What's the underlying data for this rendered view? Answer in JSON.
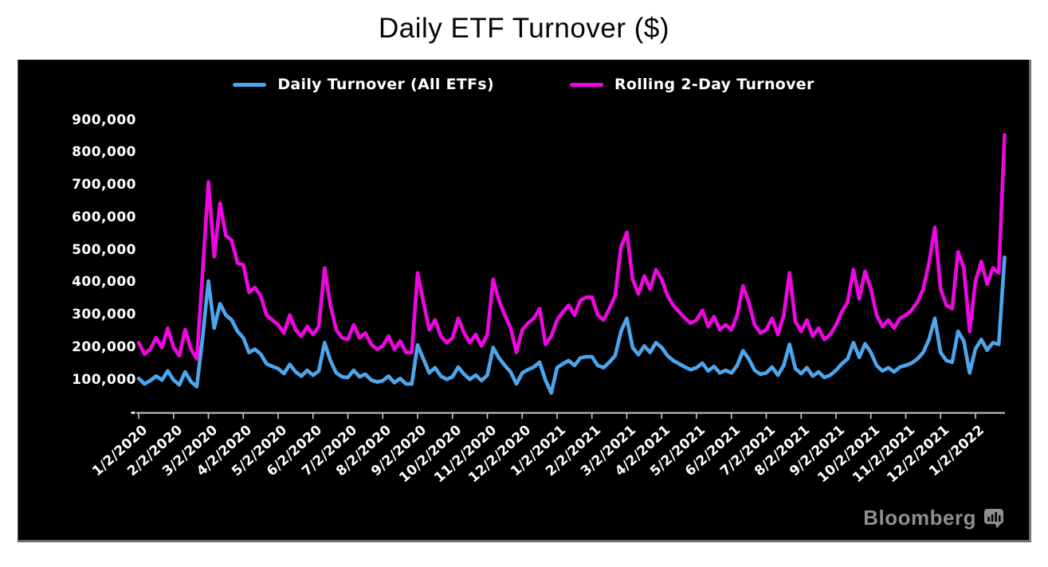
{
  "watermark": {
    "label": "Bloomberg",
    "color": "#8f8f8f",
    "logo_icon": "bloomberg-bars-icon"
  },
  "chart_data": {
    "type": "line",
    "title": "Daily ETF Turnover ($)",
    "background_color": "#000000",
    "axis_color": "#c9c9c9",
    "axis_text_color": "#ffffff",
    "grid": "off",
    "legend_position": "top-center",
    "x_axis": {
      "start_label": "1/2/2020",
      "points_per_month": 6,
      "label_rotation_deg": -42,
      "tick_labels": [
        "1/2/2020",
        "2/2/2020",
        "3/2/2020",
        "4/2/2020",
        "5/2/2020",
        "6/2/2020",
        "7/2/2020",
        "8/2/2020",
        "9/2/2020",
        "10/2/2020",
        "11/2/2020",
        "12/2/2020",
        "1/2/2021",
        "2/2/2021",
        "3/2/2021",
        "4/2/2021",
        "5/2/2021",
        "6/2/2021",
        "7/2/2021",
        "8/2/2021",
        "9/2/2021",
        "10/2/2021",
        "11/2/2021",
        "12/2/2021",
        "1/2/2022"
      ]
    },
    "y_axis": {
      "min": 0,
      "max": 900000,
      "tick_labels": [
        "900,000",
        "800,000",
        "700,000",
        "600,000",
        "500,000",
        "400,000",
        "300,000",
        "200,000",
        "100,000",
        "-"
      ]
    },
    "legend": {
      "items": [
        {
          "label": "Daily Turnover (All ETFs)",
          "color": "#4da6ec"
        },
        {
          "label": "Rolling 2-Day Turnover",
          "color": "#ef06e0"
        }
      ]
    },
    "series": [
      {
        "name": "Daily Turnover (All ETFs)",
        "color": "#4da6ec",
        "values": [
          105000,
          88000,
          98000,
          112000,
          100000,
          128000,
          100000,
          85000,
          125000,
          95000,
          80000,
          230000,
          405000,
          260000,
          335000,
          300000,
          285000,
          250000,
          230000,
          185000,
          195000,
          180000,
          150000,
          142000,
          135000,
          120000,
          148000,
          125000,
          112000,
          130000,
          115000,
          128000,
          215000,
          160000,
          122000,
          110000,
          108000,
          130000,
          110000,
          118000,
          100000,
          94000,
          98000,
          112000,
          92000,
          105000,
          88000,
          88000,
          208000,
          165000,
          122000,
          138000,
          112000,
          102000,
          110000,
          140000,
          118000,
          102000,
          115000,
          98000,
          115000,
          200000,
          168000,
          145000,
          125000,
          88000,
          122000,
          132000,
          140000,
          155000,
          100000,
          60000,
          138000,
          150000,
          160000,
          145000,
          168000,
          172000,
          172000,
          145000,
          138000,
          155000,
          175000,
          250000,
          290000,
          200000,
          178000,
          205000,
          185000,
          215000,
          200000,
          175000,
          160000,
          150000,
          140000,
          132000,
          138000,
          152000,
          128000,
          142000,
          122000,
          130000,
          122000,
          145000,
          190000,
          165000,
          130000,
          118000,
          122000,
          140000,
          115000,
          145000,
          210000,
          135000,
          120000,
          138000,
          112000,
          125000,
          108000,
          115000,
          130000,
          150000,
          165000,
          215000,
          170000,
          212000,
          185000,
          145000,
          128000,
          138000,
          125000,
          140000,
          145000,
          152000,
          165000,
          185000,
          225000,
          290000,
          185000,
          160000,
          155000,
          250000,
          220000,
          122000,
          196000,
          225000,
          192000,
          215000,
          210000,
          478000
        ]
      },
      {
        "name": "Rolling 2-Day Turnover",
        "color": "#ef06e0",
        "values": [
          215000,
          180000,
          195000,
          230000,
          200000,
          260000,
          200000,
          175000,
          255000,
          195000,
          165000,
          430000,
          710000,
          480000,
          645000,
          545000,
          530000,
          460000,
          455000,
          370000,
          385000,
          360000,
          300000,
          285000,
          270000,
          245000,
          300000,
          255000,
          235000,
          265000,
          240000,
          265000,
          445000,
          330000,
          255000,
          230000,
          225000,
          270000,
          230000,
          245000,
          210000,
          195000,
          205000,
          235000,
          195000,
          220000,
          185000,
          185000,
          430000,
          340000,
          255000,
          285000,
          235000,
          215000,
          230000,
          290000,
          245000,
          215000,
          240000,
          205000,
          240000,
          410000,
          345000,
          300000,
          260000,
          185000,
          255000,
          275000,
          290000,
          320000,
          210000,
          235000,
          285000,
          310000,
          330000,
          300000,
          345000,
          355000,
          355000,
          300000,
          285000,
          320000,
          360000,
          510000,
          555000,
          410000,
          365000,
          420000,
          380000,
          440000,
          410000,
          360000,
          330000,
          310000,
          290000,
          275000,
          285000,
          315000,
          265000,
          295000,
          255000,
          270000,
          255000,
          300000,
          390000,
          340000,
          270000,
          245000,
          255000,
          290000,
          240000,
          300000,
          430000,
          280000,
          250000,
          285000,
          235000,
          260000,
          225000,
          240000,
          270000,
          310000,
          340000,
          440000,
          350000,
          435000,
          380000,
          300000,
          265000,
          285000,
          260000,
          290000,
          300000,
          315000,
          340000,
          380000,
          460000,
          570000,
          380000,
          330000,
          320000,
          495000,
          445000,
          250000,
          405000,
          465000,
          395000,
          445000,
          430000,
          855000
        ]
      }
    ]
  }
}
